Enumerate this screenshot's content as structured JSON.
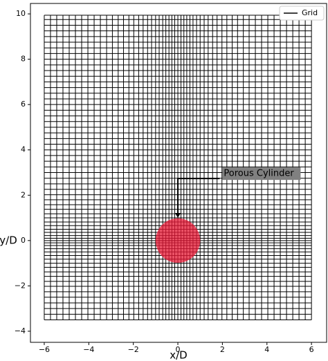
{
  "chart_data": {
    "type": "mesh",
    "xlabel": "x/D",
    "ylabel": "y/D",
    "xlim": [
      -6.62,
      6.68
    ],
    "ylim": [
      -4.49,
      10.46
    ],
    "xticks": [
      {
        "value": -6,
        "label": "−6"
      },
      {
        "value": -4,
        "label": "−4"
      },
      {
        "value": -2,
        "label": "−2"
      },
      0,
      2,
      4,
      6
    ],
    "yticks": [
      {
        "value": -4,
        "label": "−4"
      },
      {
        "value": -2,
        "label": "−2"
      },
      0,
      2,
      4,
      6,
      8,
      10
    ],
    "legend": "upper right",
    "series": [
      {
        "name": "Grid",
        "color": "#000000",
        "grid_x": [
          -6,
          -5.72,
          -5.44,
          -5.16,
          -4.88,
          -4.6,
          -4.32,
          -4.04,
          -3.76,
          -3.48,
          -3.2,
          -2.94,
          -2.68,
          -2.44,
          -2.2,
          -1.98,
          -1.76,
          -1.56,
          -1.36,
          -1.18,
          -1.0,
          -0.84,
          -0.68,
          -0.54,
          -0.4,
          -0.27,
          -0.14,
          0,
          0.14,
          0.27,
          0.4,
          0.54,
          0.68,
          0.84,
          1.0,
          1.18,
          1.36,
          1.56,
          1.76,
          1.98,
          2.2,
          2.44,
          2.68,
          2.94,
          3.2,
          3.48,
          3.76,
          4.04,
          4.32,
          4.6,
          4.88,
          5.16,
          5.44,
          5.72,
          6
        ],
        "grid_y": [
          -3.5,
          -3.25,
          -3.0,
          -2.75,
          -2.5,
          -2.26,
          -2.02,
          -1.8,
          -1.58,
          -1.38,
          -1.18,
          -1.0,
          -0.82,
          -0.66,
          -0.5,
          -0.36,
          -0.22,
          -0.1,
          0,
          0.1,
          0.22,
          0.36,
          0.5,
          0.66,
          0.82,
          1.0,
          1.18,
          1.38,
          1.58,
          1.8,
          2.02,
          2.26,
          2.5,
          2.75,
          3.0,
          3.25,
          3.5,
          3.75,
          4.0,
          4.25,
          4.5,
          4.75,
          5.0,
          5.25,
          5.5,
          5.75,
          6.0,
          6.25,
          6.5,
          6.75,
          7.0,
          7.25,
          7.5,
          7.75,
          8.0,
          8.25,
          8.5,
          8.75,
          9.0,
          9.25,
          9.5,
          9.75,
          9.94
        ]
      }
    ],
    "cylinder": {
      "center": [
        0,
        0
      ],
      "radius": 1.0,
      "color": "#e8334a"
    },
    "annotation": {
      "text": "Porous Cylinder",
      "xy": [
        0,
        1.0
      ],
      "xytext": [
        2,
        2.95
      ]
    }
  }
}
